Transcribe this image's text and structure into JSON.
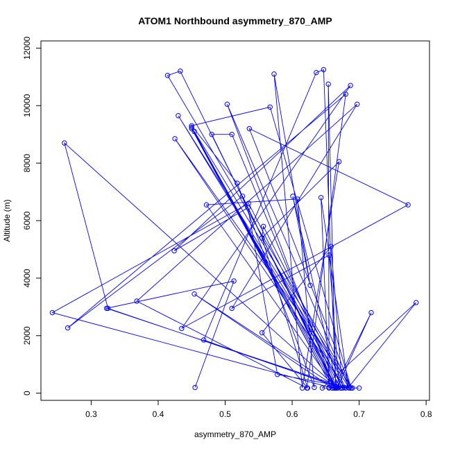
{
  "chart_data": {
    "type": "line",
    "title": "ATOM1 Northbound asymmetry_870_AMP",
    "xlabel": "asymmetry_870_AMP",
    "ylabel": "Altitude (m)",
    "xlim": [
      0.225,
      0.805
    ],
    "ylim": [
      -250,
      12250
    ],
    "xticks": [
      0.3,
      0.4,
      0.5,
      0.6,
      0.7,
      0.8
    ],
    "xtick_labels": [
      "0.3",
      "0.4",
      "0.5",
      "0.6",
      "0.7",
      "0.8"
    ],
    "yticks": [
      0,
      2000,
      4000,
      6000,
      8000,
      10000,
      12000
    ],
    "ytick_labels": [
      "0",
      "2000",
      "4000",
      "6000",
      "8000",
      "10000",
      "12000"
    ],
    "grid": false,
    "color": "#0000ff",
    "series": [
      {
        "points": [
          [
            0.455,
            200
          ],
          [
            0.513,
            3900
          ],
          [
            0.323,
            2950
          ],
          [
            0.68,
            180
          ],
          [
            0.557,
            5800
          ],
          [
            0.555,
            5400
          ],
          [
            0.67,
            8050
          ],
          [
            0.615,
            180
          ],
          [
            0.573,
            11100
          ],
          [
            0.627,
            3750
          ],
          [
            0.601,
            6850
          ],
          [
            0.668,
            180
          ],
          [
            0.26,
            8700
          ],
          [
            0.325,
            2950
          ],
          [
            0.675,
            180
          ],
          [
            0.535,
            6600
          ],
          [
            0.242,
            2800
          ],
          [
            0.66,
            180
          ],
          [
            0.454,
            3450
          ],
          [
            0.665,
            230
          ],
          [
            0.433,
            11200
          ],
          [
            0.414,
            11050
          ],
          [
            0.69,
            180
          ],
          [
            0.425,
            8850
          ],
          [
            0.678,
            200
          ],
          [
            0.43,
            9650
          ],
          [
            0.685,
            180
          ],
          [
            0.503,
            10050
          ],
          [
            0.663,
            180
          ],
          [
            0.45,
            9250
          ],
          [
            0.665,
            230
          ],
          [
            0.45,
            9200
          ],
          [
            0.66,
            180
          ],
          [
            0.454,
            9100
          ],
          [
            0.688,
            180
          ],
          [
            0.536,
            9200
          ],
          [
            0.773,
            6550
          ],
          [
            0.435,
            2250
          ],
          [
            0.687,
            10700
          ],
          [
            0.424,
            4950
          ],
          [
            0.534,
            6450
          ],
          [
            0.578,
            650
          ],
          [
            0.688,
            180
          ],
          [
            0.567,
            9950
          ],
          [
            0.45,
            9300
          ],
          [
            0.518,
            7300
          ],
          [
            0.633,
            200
          ],
          [
            0.608,
            6750
          ],
          [
            0.472,
            6550
          ],
          [
            0.665,
            180
          ],
          [
            0.48,
            9000
          ],
          [
            0.51,
            9000
          ],
          [
            0.667,
            180
          ],
          [
            0.718,
            2800
          ],
          [
            0.663,
            180
          ],
          [
            0.526,
            6850
          ],
          [
            0.265,
            2270
          ],
          [
            0.68,
            10400
          ],
          [
            0.622,
            180
          ],
          [
            0.368,
            3200
          ],
          [
            0.697,
            10050
          ],
          [
            0.51,
            2950
          ],
          [
            0.655,
            4800
          ],
          [
            0.67,
            230
          ],
          [
            0.655,
            180
          ],
          [
            0.675,
            180
          ],
          [
            0.658,
            5100
          ],
          [
            0.555,
            2100
          ],
          [
            0.623,
            180
          ],
          [
            0.555,
            5400
          ],
          [
            0.672,
            180
          ],
          [
            0.468,
            1850
          ],
          [
            0.636,
            11150
          ],
          [
            0.647,
            11250
          ],
          [
            0.665,
            200
          ],
          [
            0.654,
            10750
          ],
          [
            0.655,
            200
          ],
          [
            0.643,
            6800
          ],
          [
            0.684,
            200
          ],
          [
            0.785,
            3150
          ],
          [
            0.645,
            180
          ],
          [
            0.7,
            180
          ]
        ]
      }
    ]
  }
}
